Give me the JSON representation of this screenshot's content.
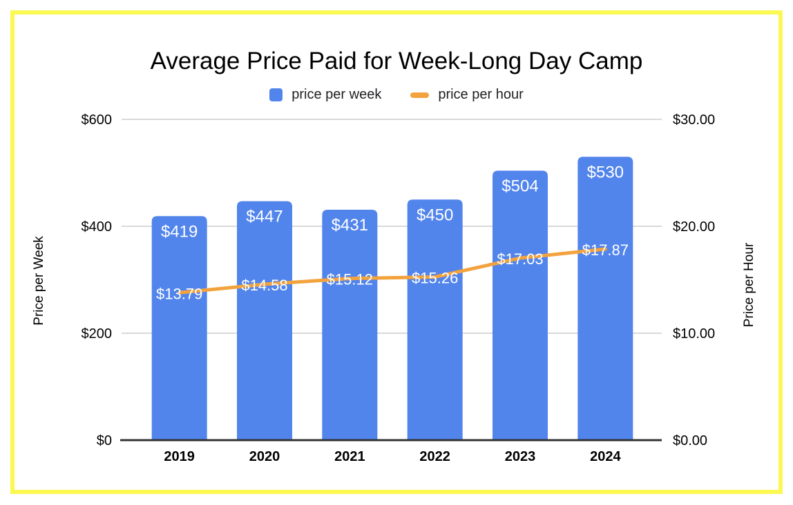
{
  "frame": {
    "border_color": "#FBF851",
    "background_color": "#FFFFFF"
  },
  "chart_data": {
    "type": "combo",
    "title": "Average Price Paid for Week-Long Day Camp",
    "categories": [
      "2019",
      "2020",
      "2021",
      "2022",
      "2023",
      "2024"
    ],
    "series": [
      {
        "name": "price per week",
        "type": "bar",
        "axis": "left",
        "color": "#5285EC",
        "values": [
          419,
          447,
          431,
          450,
          504,
          530
        ],
        "labels": [
          "$419",
          "$447",
          "$431",
          "$450",
          "$504",
          "$530"
        ],
        "label_color": "#FFFFFF"
      },
      {
        "name": "price per hour",
        "type": "line",
        "axis": "right",
        "color": "#F2A33E",
        "values": [
          13.79,
          14.58,
          15.12,
          15.26,
          17.03,
          17.87
        ],
        "labels": [
          "$13.79",
          "$14.58",
          "$15.12",
          "$15.26",
          "$17.03",
          "$17.87"
        ],
        "label_color": "#FFFFFF"
      }
    ],
    "left_axis": {
      "title": "Price per Week",
      "min": 0,
      "max": 600,
      "ticks": [
        {
          "label": "$0",
          "value": 0
        },
        {
          "label": "$200",
          "value": 200
        },
        {
          "label": "$400",
          "value": 400
        },
        {
          "label": "$600",
          "value": 600
        }
      ]
    },
    "right_axis": {
      "title": "Price per Hour",
      "min": 0,
      "max": 30,
      "ticks": [
        {
          "label": "$0.00",
          "value": 0
        },
        {
          "label": "$10.00",
          "value": 10
        },
        {
          "label": "$20.00",
          "value": 20
        },
        {
          "label": "$30.00",
          "value": 30
        }
      ]
    },
    "grid": true,
    "gridline_color": "#D9D9D9",
    "baseline_color": "#333333",
    "text_color": "#000000",
    "legend_position": "top"
  }
}
